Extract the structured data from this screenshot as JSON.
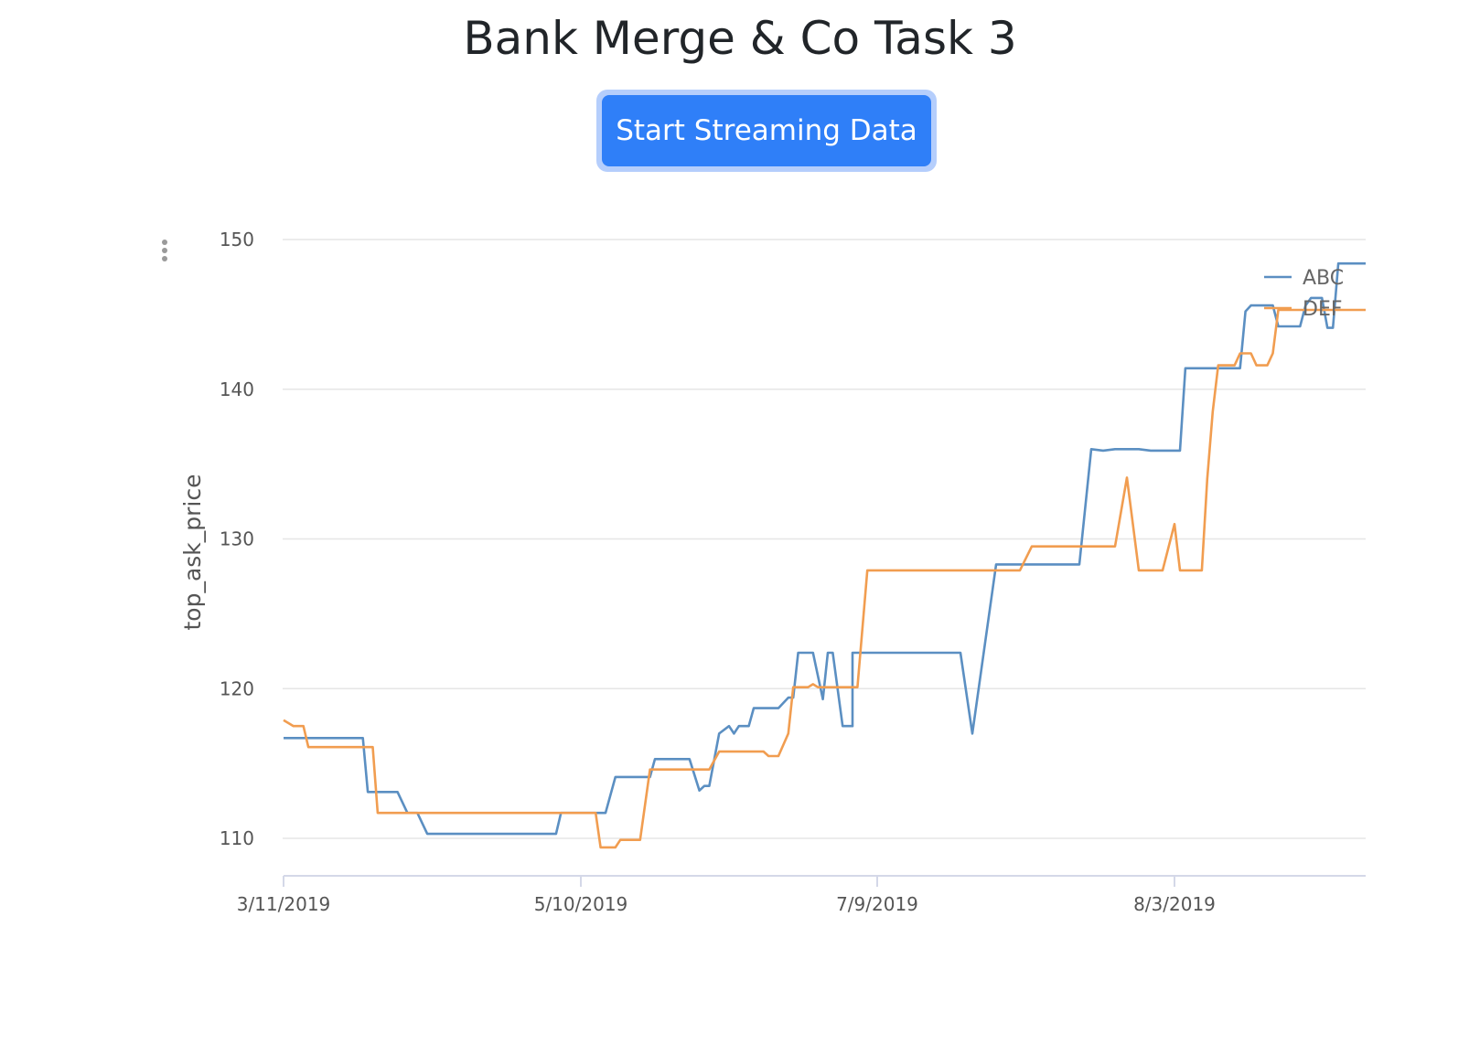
{
  "page": {
    "title": "Bank Merge & Co Task 3"
  },
  "controls": {
    "stream_button_label": "Start Streaming Data"
  },
  "chart_menu": {
    "icon": "vertical-ellipsis-icon"
  },
  "colors": {
    "accent": "#2f7ff8",
    "abc": "#5b8fc2",
    "def": "#f19d50",
    "grid": "#e6e6e6"
  },
  "chart_data": {
    "type": "line",
    "title": "",
    "xlabel": "",
    "ylabel": "top_ask_price",
    "ylim": [
      107.5,
      150
    ],
    "yticks": [
      110,
      120,
      130,
      140,
      150
    ],
    "xtick_labels": [
      "3/11/2019",
      "5/10/2019",
      "7/9/2019",
      "8/3/2019"
    ],
    "x_axis_note": "x values are the dates corresponding to each plotted point",
    "legend": [
      "ABC",
      "DEF"
    ],
    "legend_position": "top-right",
    "grid": true,
    "series": [
      {
        "name": "ABC",
        "color": "#5b8fc2",
        "points": [
          [
            "3/11/2019",
            116.7
          ],
          [
            "3/13/2019",
            116.7
          ],
          [
            "3/27/2019",
            116.7
          ],
          [
            "3/28/2019",
            113.1
          ],
          [
            "3/29/2019",
            113.1
          ],
          [
            "4/3/2019",
            113.1
          ],
          [
            "4/5/2019",
            111.7
          ],
          [
            "4/7/2019",
            111.7
          ],
          [
            "4/9/2019",
            110.3
          ],
          [
            "4/15/2019",
            110.3
          ],
          [
            "4/25/2019",
            110.3
          ],
          [
            "5/4/2019",
            110.3
          ],
          [
            "5/5/2019",
            110.3
          ],
          [
            "5/6/2019",
            111.7
          ],
          [
            "5/10/2019",
            111.7
          ],
          [
            "5/15/2019",
            111.7
          ],
          [
            "5/17/2019",
            114.1
          ],
          [
            "5/21/2019",
            114.1
          ],
          [
            "5/24/2019",
            114.1
          ],
          [
            "5/25/2019",
            115.3
          ],
          [
            "5/31/2019",
            115.3
          ],
          [
            "6/1/2019",
            115.3
          ],
          [
            "6/3/2019",
            113.2
          ],
          [
            "6/4/2019",
            113.5
          ],
          [
            "6/5/2019",
            113.5
          ],
          [
            "6/7/2019",
            117.0
          ],
          [
            "6/9/2019",
            117.5
          ],
          [
            "6/10/2019",
            117.0
          ],
          [
            "6/11/2019",
            117.5
          ],
          [
            "6/13/2019",
            117.5
          ],
          [
            "6/14/2019",
            118.7
          ],
          [
            "6/19/2019",
            118.7
          ],
          [
            "6/21/2019",
            119.4
          ],
          [
            "6/22/2019",
            119.4
          ],
          [
            "6/23/2019",
            122.4
          ],
          [
            "6/26/2019",
            122.4
          ],
          [
            "6/28/2019",
            119.3
          ],
          [
            "6/29/2019",
            122.4
          ],
          [
            "6/30/2019",
            122.4
          ],
          [
            "7/2/2019",
            117.5
          ],
          [
            "7/4/2019",
            117.5
          ],
          [
            "7/4/2019",
            122.4
          ],
          [
            "7/9/2019",
            122.4
          ],
          [
            "7/16/2019",
            122.4
          ],
          [
            "7/17/2019",
            117.0
          ],
          [
            "7/19/2019",
            128.3
          ],
          [
            "7/22/2019",
            128.3
          ],
          [
            "7/26/2019",
            128.3
          ],
          [
            "7/27/2019",
            136.0
          ],
          [
            "7/28/2019",
            135.9
          ],
          [
            "7/29/2019",
            136.0
          ],
          [
            "7/31/2019",
            136.0
          ],
          [
            "8/1/2019",
            135.9
          ],
          [
            "8/4/2019",
            135.9
          ],
          [
            "8/5/2019",
            141.4
          ],
          [
            "8/10/2019",
            141.4
          ],
          [
            "8/15/2019",
            141.4
          ],
          [
            "8/16/2019",
            145.2
          ],
          [
            "8/17/2019",
            145.6
          ],
          [
            "8/21/2019",
            145.6
          ],
          [
            "8/22/2019",
            144.2
          ],
          [
            "8/24/2019",
            144.2
          ],
          [
            "8/26/2019",
            144.2
          ],
          [
            "8/27/2019",
            145.6
          ],
          [
            "8/28/2019",
            146.1
          ],
          [
            "8/29/2019",
            146.1
          ],
          [
            "8/30/2019",
            146.1
          ],
          [
            "8/31/2019",
            144.1
          ],
          [
            "9/1/2019",
            144.1
          ],
          [
            "9/2/2019",
            148.4
          ],
          [
            "9/7/2019",
            148.4
          ]
        ]
      },
      {
        "name": "DEF",
        "color": "#f19d50",
        "points": [
          [
            "3/11/2019",
            117.9
          ],
          [
            "3/13/2019",
            117.5
          ],
          [
            "3/15/2019",
            117.5
          ],
          [
            "3/16/2019",
            116.1
          ],
          [
            "3/20/2019",
            116.1
          ],
          [
            "3/25/2019",
            116.1
          ],
          [
            "3/29/2019",
            116.1
          ],
          [
            "3/30/2019",
            111.7
          ],
          [
            "4/10/2019",
            111.7
          ],
          [
            "4/25/2019",
            111.7
          ],
          [
            "5/9/2019",
            111.7
          ],
          [
            "5/13/2019",
            111.7
          ],
          [
            "5/14/2019",
            109.4
          ],
          [
            "5/17/2019",
            109.4
          ],
          [
            "5/18/2019",
            109.9
          ],
          [
            "5/19/2019",
            109.9
          ],
          [
            "5/22/2019",
            109.9
          ],
          [
            "5/24/2019",
            114.6
          ],
          [
            "6/1/2019",
            114.6
          ],
          [
            "6/5/2019",
            114.6
          ],
          [
            "6/7/2019",
            115.8
          ],
          [
            "6/9/2019",
            115.8
          ],
          [
            "6/12/2019",
            115.8
          ],
          [
            "6/16/2019",
            115.8
          ],
          [
            "6/17/2019",
            115.5
          ],
          [
            "6/19/2019",
            115.5
          ],
          [
            "6/21/2019",
            117.0
          ],
          [
            "6/22/2019",
            120.1
          ],
          [
            "6/25/2019",
            120.1
          ],
          [
            "6/26/2019",
            120.3
          ],
          [
            "6/27/2019",
            120.1
          ],
          [
            "7/2/2019",
            120.1
          ],
          [
            "7/5/2019",
            120.1
          ],
          [
            "7/7/2019",
            127.9
          ],
          [
            "7/9/2019",
            127.9
          ],
          [
            "7/15/2019",
            127.9
          ],
          [
            "7/20/2019",
            127.9
          ],
          [
            "7/21/2019",
            127.9
          ],
          [
            "7/22/2019",
            129.5
          ],
          [
            "7/24/2019",
            129.5
          ],
          [
            "7/29/2019",
            129.5
          ],
          [
            "7/30/2019",
            134.1
          ],
          [
            "7/31/2019",
            127.9
          ],
          [
            "8/2/2019",
            127.9
          ],
          [
            "8/3/2019",
            131.0
          ],
          [
            "8/4/2019",
            127.9
          ],
          [
            "8/6/2019",
            127.9
          ],
          [
            "8/8/2019",
            127.9
          ],
          [
            "8/9/2019",
            134.0
          ],
          [
            "8/10/2019",
            138.5
          ],
          [
            "8/11/2019",
            141.6
          ],
          [
            "8/13/2019",
            141.6
          ],
          [
            "8/14/2019",
            141.6
          ],
          [
            "8/15/2019",
            142.4
          ],
          [
            "8/17/2019",
            142.4
          ],
          [
            "8/18/2019",
            141.6
          ],
          [
            "8/19/2019",
            141.6
          ],
          [
            "8/20/2019",
            141.6
          ],
          [
            "8/21/2019",
            142.4
          ],
          [
            "8/22/2019",
            145.3
          ],
          [
            "8/28/2019",
            145.3
          ],
          [
            "9/4/2019",
            145.3
          ],
          [
            "9/7/2019",
            145.3
          ]
        ]
      }
    ]
  }
}
